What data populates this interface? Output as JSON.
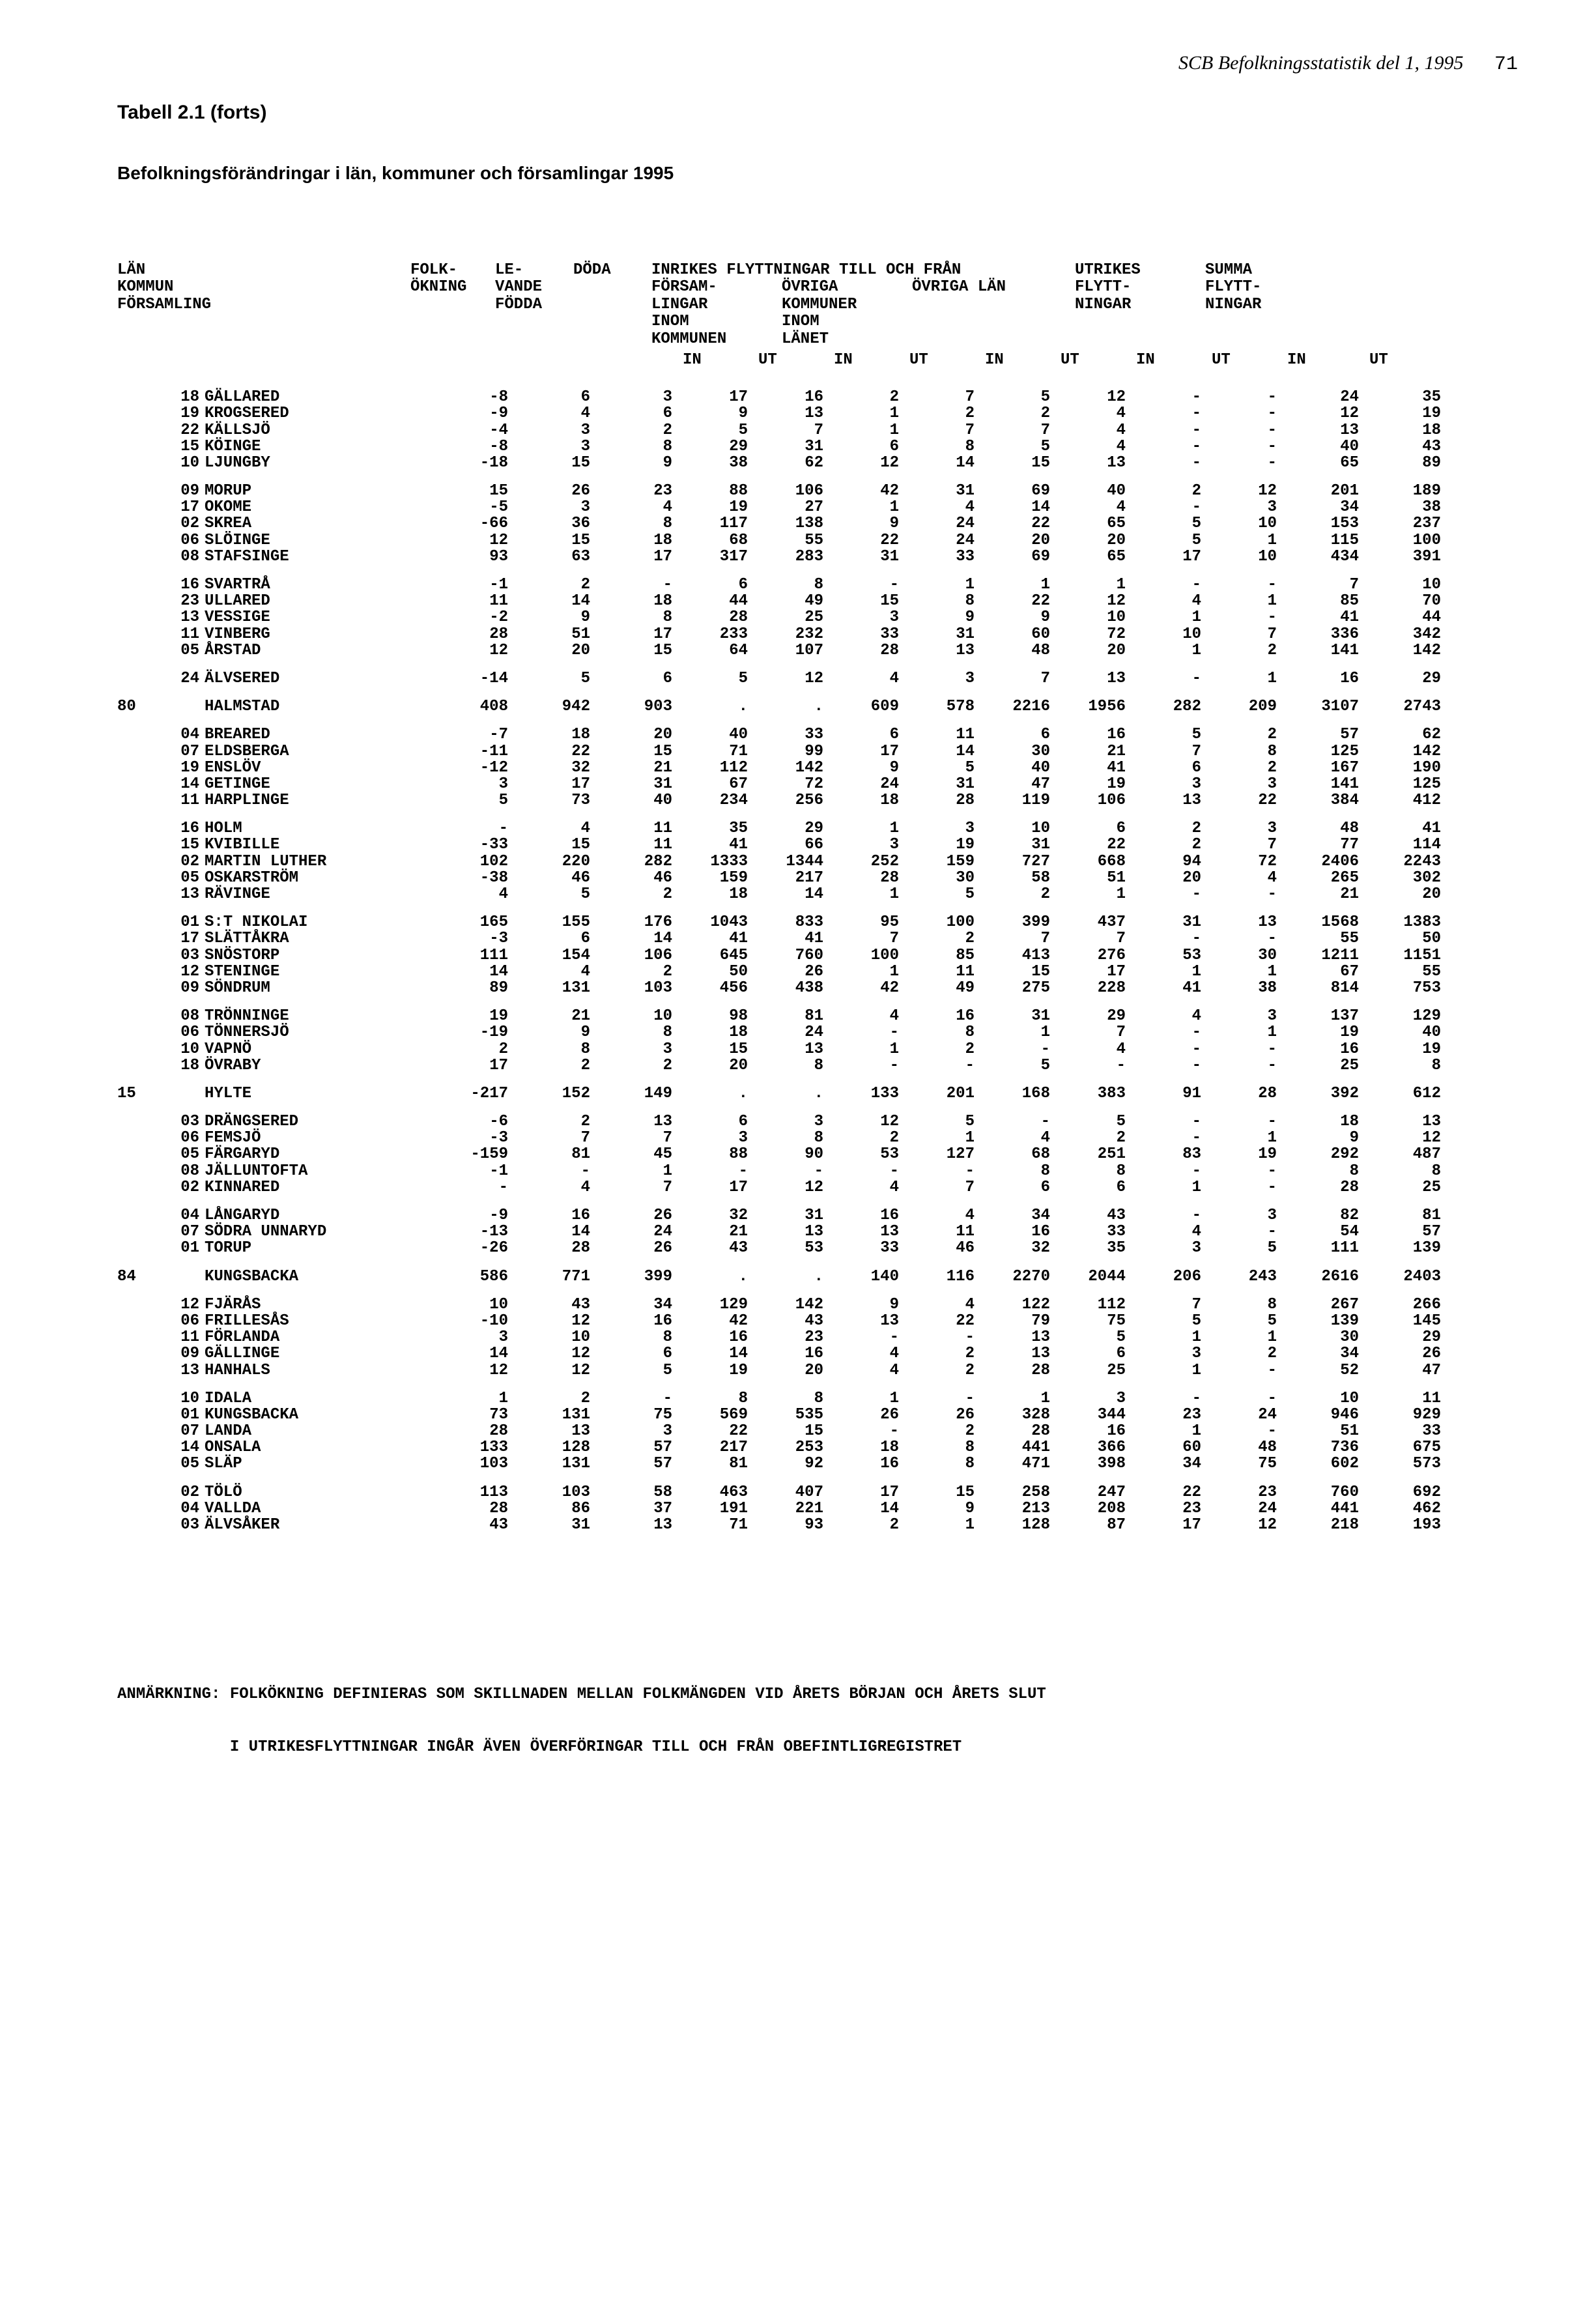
{
  "running_head": {
    "title": "SCB Befolkningsstatistik del 1, 1995",
    "page": "71"
  },
  "tabell_title": "Tabell 2.1 (forts)",
  "subtitle": "Befolkningsförändringar i län, kommuner och församlingar 1995",
  "header": {
    "l1": "LÄN",
    "l2": "KOMMUN",
    "l3": "FÖRSAMLING",
    "c_folk1": "FOLK-",
    "c_folk2": "ÖKNING",
    "c_lev1": "LE-",
    "c_lev2": "VANDE",
    "c_lev3": "FÖDDA",
    "c_doda": "DÖDA",
    "c_inrikes": "INRIKES FLYTTNINGAR TILL OCH FRÅN",
    "c_forsam1": "FÖRSAM-",
    "c_forsam2": "LINGAR",
    "c_forsam3": "INOM",
    "c_forsam4": "KOMMUNEN",
    "c_ovriga1": "ÖVRIGA",
    "c_ovriga2": "KOMMUNER",
    "c_ovriga3": "INOM",
    "c_ovriga4": "LÄNET",
    "c_ovrigalan": "ÖVRIGA LÄN",
    "c_utrikes1": "UTRIKES",
    "c_utrikes2": "FLYTT-",
    "c_utrikes3": "NINGAR",
    "c_summa1": "SUMMA",
    "c_summa2": "FLYTT-",
    "c_summa3": "NINGAR",
    "in": "IN",
    "ut": "UT"
  },
  "rows": [
    {
      "g": 1,
      "lan": "",
      "code": "18",
      "name": "GÄLLARED",
      "v": [
        "-8",
        "6",
        "3",
        "17",
        "16",
        "2",
        "7",
        "5",
        "12",
        "-",
        "-",
        "24",
        "35"
      ]
    },
    {
      "g": 1,
      "lan": "",
      "code": "19",
      "name": "KROGSERED",
      "v": [
        "-9",
        "4",
        "6",
        "9",
        "13",
        "1",
        "2",
        "2",
        "4",
        "-",
        "-",
        "12",
        "19"
      ]
    },
    {
      "g": 1,
      "lan": "",
      "code": "22",
      "name": "KÄLLSJÖ",
      "v": [
        "-4",
        "3",
        "2",
        "5",
        "7",
        "1",
        "7",
        "7",
        "4",
        "-",
        "-",
        "13",
        "18"
      ]
    },
    {
      "g": 1,
      "lan": "",
      "code": "15",
      "name": "KÖINGE",
      "v": [
        "-8",
        "3",
        "8",
        "29",
        "31",
        "6",
        "8",
        "5",
        "4",
        "-",
        "-",
        "40",
        "43"
      ]
    },
    {
      "g": 1,
      "lan": "",
      "code": "10",
      "name": "LJUNGBY",
      "v": [
        "-18",
        "15",
        "9",
        "38",
        "62",
        "12",
        "14",
        "15",
        "13",
        "-",
        "-",
        "65",
        "89"
      ]
    },
    {
      "g": 2,
      "lan": "",
      "code": "09",
      "name": "MORUP",
      "v": [
        "15",
        "26",
        "23",
        "88",
        "106",
        "42",
        "31",
        "69",
        "40",
        "2",
        "12",
        "201",
        "189"
      ]
    },
    {
      "g": 2,
      "lan": "",
      "code": "17",
      "name": "OKOME",
      "v": [
        "-5",
        "3",
        "4",
        "19",
        "27",
        "1",
        "4",
        "14",
        "4",
        "-",
        "3",
        "34",
        "38"
      ]
    },
    {
      "g": 2,
      "lan": "",
      "code": "02",
      "name": "SKREA",
      "v": [
        "-66",
        "36",
        "8",
        "117",
        "138",
        "9",
        "24",
        "22",
        "65",
        "5",
        "10",
        "153",
        "237"
      ]
    },
    {
      "g": 2,
      "lan": "",
      "code": "06",
      "name": "SLÖINGE",
      "v": [
        "12",
        "15",
        "18",
        "68",
        "55",
        "22",
        "24",
        "20",
        "20",
        "5",
        "1",
        "115",
        "100"
      ]
    },
    {
      "g": 2,
      "lan": "",
      "code": "08",
      "name": "STAFSINGE",
      "v": [
        "93",
        "63",
        "17",
        "317",
        "283",
        "31",
        "33",
        "69",
        "65",
        "17",
        "10",
        "434",
        "391"
      ]
    },
    {
      "g": 3,
      "lan": "",
      "code": "16",
      "name": "SVARTRÅ",
      "v": [
        "-1",
        "2",
        "-",
        "6",
        "8",
        "-",
        "1",
        "1",
        "1",
        "-",
        "-",
        "7",
        "10"
      ]
    },
    {
      "g": 3,
      "lan": "",
      "code": "23",
      "name": "ULLARED",
      "v": [
        "11",
        "14",
        "18",
        "44",
        "49",
        "15",
        "8",
        "22",
        "12",
        "4",
        "1",
        "85",
        "70"
      ]
    },
    {
      "g": 3,
      "lan": "",
      "code": "13",
      "name": "VESSIGE",
      "v": [
        "-2",
        "9",
        "8",
        "28",
        "25",
        "3",
        "9",
        "9",
        "10",
        "1",
        "-",
        "41",
        "44"
      ]
    },
    {
      "g": 3,
      "lan": "",
      "code": "11",
      "name": "VINBERG",
      "v": [
        "28",
        "51",
        "17",
        "233",
        "232",
        "33",
        "31",
        "60",
        "72",
        "10",
        "7",
        "336",
        "342"
      ]
    },
    {
      "g": 3,
      "lan": "",
      "code": "05",
      "name": "ÅRSTAD",
      "v": [
        "12",
        "20",
        "15",
        "64",
        "107",
        "28",
        "13",
        "48",
        "20",
        "1",
        "2",
        "141",
        "142"
      ]
    },
    {
      "g": 4,
      "lan": "",
      "code": "24",
      "name": "ÄLVSERED",
      "v": [
        "-14",
        "5",
        "6",
        "5",
        "12",
        "4",
        "3",
        "7",
        "13",
        "-",
        "1",
        "16",
        "29"
      ]
    },
    {
      "g": 5,
      "lan": "80",
      "code": "",
      "name": "HALMSTAD",
      "v": [
        "408",
        "942",
        "903",
        ".",
        ".",
        "609",
        "578",
        "2216",
        "1956",
        "282",
        "209",
        "3107",
        "2743"
      ]
    },
    {
      "g": 6,
      "lan": "",
      "code": "04",
      "name": "BREARED",
      "v": [
        "-7",
        "18",
        "20",
        "40",
        "33",
        "6",
        "11",
        "6",
        "16",
        "5",
        "2",
        "57",
        "62"
      ]
    },
    {
      "g": 6,
      "lan": "",
      "code": "07",
      "name": "ELDSBERGA",
      "v": [
        "-11",
        "22",
        "15",
        "71",
        "99",
        "17",
        "14",
        "30",
        "21",
        "7",
        "8",
        "125",
        "142"
      ]
    },
    {
      "g": 6,
      "lan": "",
      "code": "19",
      "name": "ENSLÖV",
      "v": [
        "-12",
        "32",
        "21",
        "112",
        "142",
        "9",
        "5",
        "40",
        "41",
        "6",
        "2",
        "167",
        "190"
      ]
    },
    {
      "g": 6,
      "lan": "",
      "code": "14",
      "name": "GETINGE",
      "v": [
        "3",
        "17",
        "31",
        "67",
        "72",
        "24",
        "31",
        "47",
        "19",
        "3",
        "3",
        "141",
        "125"
      ]
    },
    {
      "g": 6,
      "lan": "",
      "code": "11",
      "name": "HARPLINGE",
      "v": [
        "5",
        "73",
        "40",
        "234",
        "256",
        "18",
        "28",
        "119",
        "106",
        "13",
        "22",
        "384",
        "412"
      ]
    },
    {
      "g": 7,
      "lan": "",
      "code": "16",
      "name": "HOLM",
      "v": [
        "-",
        "4",
        "11",
        "35",
        "29",
        "1",
        "3",
        "10",
        "6",
        "2",
        "3",
        "48",
        "41"
      ]
    },
    {
      "g": 7,
      "lan": "",
      "code": "15",
      "name": "KVIBILLE",
      "v": [
        "-33",
        "15",
        "11",
        "41",
        "66",
        "3",
        "19",
        "31",
        "22",
        "2",
        "7",
        "77",
        "114"
      ]
    },
    {
      "g": 7,
      "lan": "",
      "code": "02",
      "name": "MARTIN LUTHER",
      "v": [
        "102",
        "220",
        "282",
        "1333",
        "1344",
        "252",
        "159",
        "727",
        "668",
        "94",
        "72",
        "2406",
        "2243"
      ]
    },
    {
      "g": 7,
      "lan": "",
      "code": "05",
      "name": "OSKARSTRÖM",
      "v": [
        "-38",
        "46",
        "46",
        "159",
        "217",
        "28",
        "30",
        "58",
        "51",
        "20",
        "4",
        "265",
        "302"
      ]
    },
    {
      "g": 7,
      "lan": "",
      "code": "13",
      "name": "RÄVINGE",
      "v": [
        "4",
        "5",
        "2",
        "18",
        "14",
        "1",
        "5",
        "2",
        "1",
        "-",
        "-",
        "21",
        "20"
      ]
    },
    {
      "g": 8,
      "lan": "",
      "code": "01",
      "name": "S:T NIKOLAI",
      "v": [
        "165",
        "155",
        "176",
        "1043",
        "833",
        "95",
        "100",
        "399",
        "437",
        "31",
        "13",
        "1568",
        "1383"
      ]
    },
    {
      "g": 8,
      "lan": "",
      "code": "17",
      "name": "SLÄTTÅKRA",
      "v": [
        "-3",
        "6",
        "14",
        "41",
        "41",
        "7",
        "2",
        "7",
        "7",
        "-",
        "-",
        "55",
        "50"
      ]
    },
    {
      "g": 8,
      "lan": "",
      "code": "03",
      "name": "SNÖSTORP",
      "v": [
        "111",
        "154",
        "106",
        "645",
        "760",
        "100",
        "85",
        "413",
        "276",
        "53",
        "30",
        "1211",
        "1151"
      ]
    },
    {
      "g": 8,
      "lan": "",
      "code": "12",
      "name": "STENINGE",
      "v": [
        "14",
        "4",
        "2",
        "50",
        "26",
        "1",
        "11",
        "15",
        "17",
        "1",
        "1",
        "67",
        "55"
      ]
    },
    {
      "g": 8,
      "lan": "",
      "code": "09",
      "name": "SÖNDRUM",
      "v": [
        "89",
        "131",
        "103",
        "456",
        "438",
        "42",
        "49",
        "275",
        "228",
        "41",
        "38",
        "814",
        "753"
      ]
    },
    {
      "g": 9,
      "lan": "",
      "code": "08",
      "name": "TRÖNNINGE",
      "v": [
        "19",
        "21",
        "10",
        "98",
        "81",
        "4",
        "16",
        "31",
        "29",
        "4",
        "3",
        "137",
        "129"
      ]
    },
    {
      "g": 9,
      "lan": "",
      "code": "06",
      "name": "TÖNNERSJÖ",
      "v": [
        "-19",
        "9",
        "8",
        "18",
        "24",
        "-",
        "8",
        "1",
        "7",
        "-",
        "1",
        "19",
        "40"
      ]
    },
    {
      "g": 9,
      "lan": "",
      "code": "10",
      "name": "VAPNÖ",
      "v": [
        "2",
        "8",
        "3",
        "15",
        "13",
        "1",
        "2",
        "-",
        "4",
        "-",
        "-",
        "16",
        "19"
      ]
    },
    {
      "g": 9,
      "lan": "",
      "code": "18",
      "name": "ÖVRABY",
      "v": [
        "17",
        "2",
        "2",
        "20",
        "8",
        "-",
        "-",
        "5",
        "-",
        "-",
        "-",
        "25",
        "8"
      ]
    },
    {
      "g": 10,
      "lan": "15",
      "code": "",
      "name": "HYLTE",
      "v": [
        "-217",
        "152",
        "149",
        ".",
        ".",
        "133",
        "201",
        "168",
        "383",
        "91",
        "28",
        "392",
        "612"
      ]
    },
    {
      "g": 11,
      "lan": "",
      "code": "03",
      "name": "DRÄNGSERED",
      "v": [
        "-6",
        "2",
        "13",
        "6",
        "3",
        "12",
        "5",
        "-",
        "5",
        "-",
        "-",
        "18",
        "13"
      ]
    },
    {
      "g": 11,
      "lan": "",
      "code": "06",
      "name": "FEMSJÖ",
      "v": [
        "-3",
        "7",
        "7",
        "3",
        "8",
        "2",
        "1",
        "4",
        "2",
        "-",
        "1",
        "9",
        "12"
      ]
    },
    {
      "g": 11,
      "lan": "",
      "code": "05",
      "name": "FÄRGARYD",
      "v": [
        "-159",
        "81",
        "45",
        "88",
        "90",
        "53",
        "127",
        "68",
        "251",
        "83",
        "19",
        "292",
        "487"
      ]
    },
    {
      "g": 11,
      "lan": "",
      "code": "08",
      "name": "JÄLLUNTOFTA",
      "v": [
        "-1",
        "-",
        "1",
        "-",
        "-",
        "-",
        "-",
        "8",
        "8",
        "-",
        "-",
        "8",
        "8"
      ]
    },
    {
      "g": 11,
      "lan": "",
      "code": "02",
      "name": "KINNARED",
      "v": [
        "-",
        "4",
        "7",
        "17",
        "12",
        "4",
        "7",
        "6",
        "6",
        "1",
        "-",
        "28",
        "25"
      ]
    },
    {
      "g": 12,
      "lan": "",
      "code": "04",
      "name": "LÅNGARYD",
      "v": [
        "-9",
        "16",
        "26",
        "32",
        "31",
        "16",
        "4",
        "34",
        "43",
        "-",
        "3",
        "82",
        "81"
      ]
    },
    {
      "g": 12,
      "lan": "",
      "code": "07",
      "name": "SÖDRA UNNARYD",
      "v": [
        "-13",
        "14",
        "24",
        "21",
        "13",
        "13",
        "11",
        "16",
        "33",
        "4",
        "-",
        "54",
        "57"
      ]
    },
    {
      "g": 12,
      "lan": "",
      "code": "01",
      "name": "TORUP",
      "v": [
        "-26",
        "28",
        "26",
        "43",
        "53",
        "33",
        "46",
        "32",
        "35",
        "3",
        "5",
        "111",
        "139"
      ]
    },
    {
      "g": 13,
      "lan": "84",
      "code": "",
      "name": "KUNGSBACKA",
      "v": [
        "586",
        "771",
        "399",
        ".",
        ".",
        "140",
        "116",
        "2270",
        "2044",
        "206",
        "243",
        "2616",
        "2403"
      ]
    },
    {
      "g": 14,
      "lan": "",
      "code": "12",
      "name": "FJÄRÅS",
      "v": [
        "10",
        "43",
        "34",
        "129",
        "142",
        "9",
        "4",
        "122",
        "112",
        "7",
        "8",
        "267",
        "266"
      ]
    },
    {
      "g": 14,
      "lan": "",
      "code": "06",
      "name": "FRILLESÅS",
      "v": [
        "-10",
        "12",
        "16",
        "42",
        "43",
        "13",
        "22",
        "79",
        "75",
        "5",
        "5",
        "139",
        "145"
      ]
    },
    {
      "g": 14,
      "lan": "",
      "code": "11",
      "name": "FÖRLANDA",
      "v": [
        "3",
        "10",
        "8",
        "16",
        "23",
        "-",
        "-",
        "13",
        "5",
        "1",
        "1",
        "30",
        "29"
      ]
    },
    {
      "g": 14,
      "lan": "",
      "code": "09",
      "name": "GÄLLINGE",
      "v": [
        "14",
        "12",
        "6",
        "14",
        "16",
        "4",
        "2",
        "13",
        "6",
        "3",
        "2",
        "34",
        "26"
      ]
    },
    {
      "g": 14,
      "lan": "",
      "code": "13",
      "name": "HANHALS",
      "v": [
        "12",
        "12",
        "5",
        "19",
        "20",
        "4",
        "2",
        "28",
        "25",
        "1",
        "-",
        "52",
        "47"
      ]
    },
    {
      "g": 15,
      "lan": "",
      "code": "10",
      "name": "IDALA",
      "v": [
        "1",
        "2",
        "-",
        "8",
        "8",
        "1",
        "-",
        "1",
        "3",
        "-",
        "-",
        "10",
        "11"
      ]
    },
    {
      "g": 15,
      "lan": "",
      "code": "01",
      "name": "KUNGSBACKA",
      "v": [
        "73",
        "131",
        "75",
        "569",
        "535",
        "26",
        "26",
        "328",
        "344",
        "23",
        "24",
        "946",
        "929"
      ]
    },
    {
      "g": 15,
      "lan": "",
      "code": "07",
      "name": "LANDA",
      "v": [
        "28",
        "13",
        "3",
        "22",
        "15",
        "-",
        "2",
        "28",
        "16",
        "1",
        "-",
        "51",
        "33"
      ]
    },
    {
      "g": 15,
      "lan": "",
      "code": "14",
      "name": "ONSALA",
      "v": [
        "133",
        "128",
        "57",
        "217",
        "253",
        "18",
        "8",
        "441",
        "366",
        "60",
        "48",
        "736",
        "675"
      ]
    },
    {
      "g": 15,
      "lan": "",
      "code": "05",
      "name": "SLÄP",
      "v": [
        "103",
        "131",
        "57",
        "81",
        "92",
        "16",
        "8",
        "471",
        "398",
        "34",
        "75",
        "602",
        "573"
      ]
    },
    {
      "g": 16,
      "lan": "",
      "code": "02",
      "name": "TÖLÖ",
      "v": [
        "113",
        "103",
        "58",
        "463",
        "407",
        "17",
        "15",
        "258",
        "247",
        "22",
        "23",
        "760",
        "692"
      ]
    },
    {
      "g": 16,
      "lan": "",
      "code": "04",
      "name": "VALLDA",
      "v": [
        "28",
        "86",
        "37",
        "191",
        "221",
        "14",
        "9",
        "213",
        "208",
        "23",
        "24",
        "441",
        "462"
      ]
    },
    {
      "g": 16,
      "lan": "",
      "code": "03",
      "name": "ÄLVSÅKER",
      "v": [
        "43",
        "31",
        "13",
        "71",
        "93",
        "2",
        "1",
        "128",
        "87",
        "17",
        "12",
        "218",
        "193"
      ]
    }
  ],
  "footnote": {
    "line1": "ANMÄRKNING: FOLKÖKNING DEFINIERAS SOM SKILLNADEN MELLAN FOLKMÄNGDEN VID ÅRETS BÖRJAN OCH ÅRETS SLUT",
    "line2": "            I UTRIKESFLYTTNINGAR INGÅR ÄVEN ÖVERFÖRINGAR TILL OCH FRÅN OBEFINTLIGREGISTRET"
  }
}
